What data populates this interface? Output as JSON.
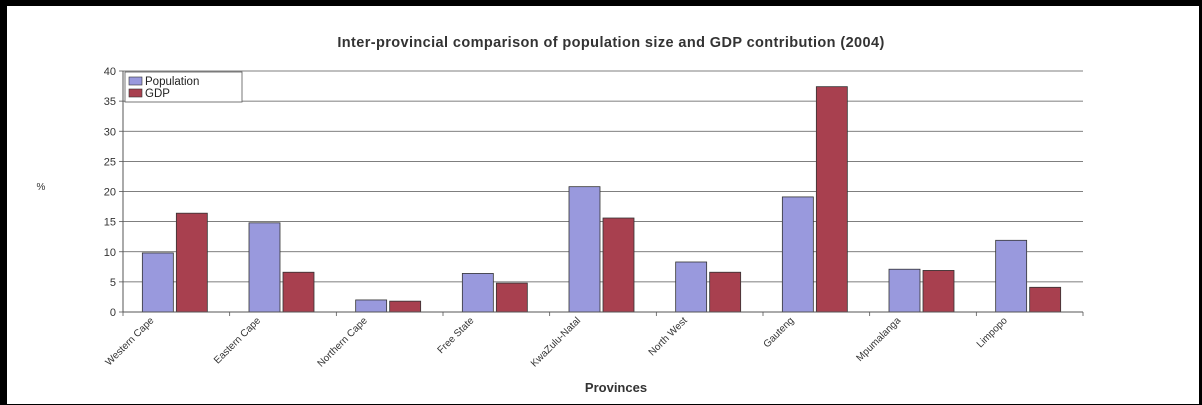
{
  "chart_data": {
    "type": "bar",
    "title": "Inter-provincial comparison of population size and GDP contribution (2004)",
    "xlabel": "Provinces",
    "ylabel": "%",
    "ylim": [
      0,
      40
    ],
    "yticks": [
      0,
      5,
      10,
      15,
      20,
      25,
      30,
      35,
      40
    ],
    "grid": true,
    "legend_position": "top-left",
    "categories": [
      "Western Cape",
      "Eastern Cape",
      "Northern Cape",
      "Free State",
      "KwaZulu-Natal",
      "North West",
      "Gauteng",
      "Mpumalanga",
      "Limpopo"
    ],
    "series": [
      {
        "name": "Population",
        "color": "#9999dd",
        "values": [
          9.8,
          14.8,
          2.0,
          6.4,
          20.8,
          8.3,
          19.1,
          7.1,
          11.9
        ]
      },
      {
        "name": "GDP",
        "color": "#a8404f",
        "values": [
          16.4,
          6.6,
          1.8,
          4.8,
          15.6,
          6.6,
          37.4,
          6.9,
          4.1
        ]
      }
    ]
  }
}
